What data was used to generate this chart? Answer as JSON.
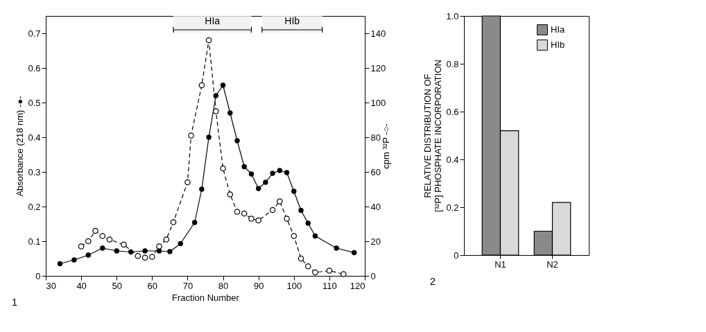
{
  "chart_data": [
    {
      "type": "line",
      "xlabel": "Fraction Number",
      "ylabel": "Absorbance (218 nm) -●-",
      "y2label": "cpm ³²P -○-",
      "xlim": [
        30,
        120
      ],
      "xticks": [
        30,
        40,
        50,
        60,
        70,
        80,
        90,
        100,
        110,
        120
      ],
      "ylim": [
        0,
        0.75
      ],
      "yticks": [
        0,
        0.1,
        0.2,
        0.3,
        0.4,
        0.5,
        0.6,
        0.7
      ],
      "y2lim": [
        0,
        150
      ],
      "y2ticks": [
        0,
        20,
        40,
        60,
        80,
        100,
        120,
        140
      ],
      "marker": "circle",
      "series": [
        {
          "color": "#000000",
          "line_style": "solid",
          "x": [
            34,
            38,
            42,
            46,
            50,
            54,
            58,
            62,
            65,
            68,
            72,
            74,
            76,
            78,
            80,
            82,
            84,
            86,
            88,
            90,
            92,
            94,
            96,
            98,
            100,
            102,
            104,
            106,
            112,
            117
          ],
          "values": [
            0.035,
            0.046,
            0.06,
            0.08,
            0.072,
            0.069,
            0.072,
            0.072,
            0.07,
            0.093,
            0.154,
            0.25,
            0.4,
            0.52,
            0.55,
            0.47,
            0.39,
            0.315,
            0.294,
            0.252,
            0.27,
            0.296,
            0.304,
            0.298,
            0.244,
            0.189,
            0.152,
            0.115,
            0.08,
            0.067
          ]
        },
        {
          "color": "#000000",
          "line_style": "dashed",
          "axis": "y2",
          "x": [
            40,
            42,
            44,
            46,
            48,
            52,
            56,
            58,
            60,
            62,
            64,
            66,
            70,
            71,
            74,
            76,
            78,
            80,
            82,
            84,
            86,
            88,
            90,
            94,
            96,
            98,
            100,
            102,
            104,
            106,
            110,
            114
          ],
          "values": [
            17,
            20,
            26,
            23,
            21,
            18,
            11.5,
            10.5,
            11,
            17,
            21,
            31,
            54,
            81,
            110,
            136,
            95,
            62,
            47,
            37,
            36,
            33,
            32,
            38,
            43,
            33,
            23,
            10,
            5.5,
            2,
            3,
            1
          ]
        }
      ],
      "bands": [
        {
          "axis": "x",
          "from": 66,
          "to": 88,
          "label": "HIa"
        },
        {
          "axis": "x",
          "from": 91,
          "to": 108,
          "label": "HIb"
        }
      ],
      "annotations": [
        "1"
      ]
    },
    {
      "type": "bar",
      "ylabel": "RELATIVE DISTRIBUTION OF\n[³²P] PHOSPHATE INCORPORATION",
      "categories": [
        "N1",
        "N2"
      ],
      "ylim": [
        0,
        1
      ],
      "yticks": [
        0,
        0.2,
        0.4,
        0.6,
        0.8,
        {
          "value": 1,
          "label": "1.0"
        }
      ],
      "legend": "top right",
      "series": [
        {
          "name": "HIa",
          "color": "#8a8a8a",
          "values": [
            1.0,
            0.1
          ]
        },
        {
          "name": "HIb",
          "color": "#d9d9d9",
          "values": [
            0.52,
            0.22
          ]
        }
      ],
      "annotations": [
        "2"
      ]
    }
  ]
}
